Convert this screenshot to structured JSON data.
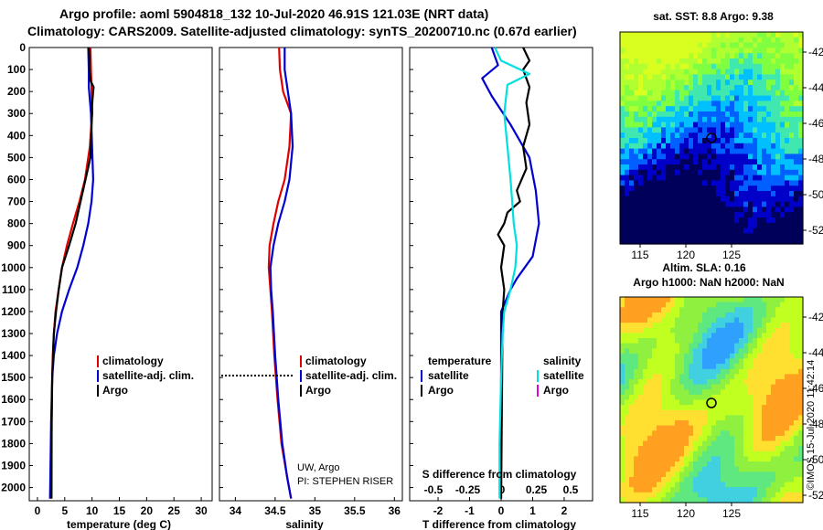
{
  "header": {
    "line1": "Argo profile: aoml 5904818_132 10-Jul-2020 46.91S 121.03E (NRT data)",
    "line2": "Climatology: CARS2009. Satellite-adjusted climatology: synTS_20200710.nc (0.67d earlier)"
  },
  "chart_data": [
    {
      "type": "line",
      "id": "temperature",
      "xlabel": "temperature (deg C)",
      "ylabel": "",
      "xlim": [
        -1.5,
        32
      ],
      "xticks": [
        0,
        5,
        10,
        15,
        20,
        25,
        30
      ],
      "ylim": [
        2060,
        0
      ],
      "yticks": [
        0,
        100,
        200,
        300,
        400,
        500,
        600,
        700,
        800,
        900,
        1000,
        1100,
        1200,
        1300,
        1400,
        1500,
        1600,
        1700,
        1800,
        1900,
        2000
      ],
      "legend": [
        "climatology",
        "satellite-adj. clim.",
        "Argo"
      ],
      "series": [
        {
          "name": "climatology",
          "color": "#e00000",
          "x": [
            9.7,
            9.8,
            9.9,
            10.0,
            9.6,
            8.7,
            7.7,
            6.5,
            5.4,
            4.5,
            3.9,
            3.3,
            3.0,
            2.8,
            2.7,
            2.6,
            2.6
          ],
          "y": [
            0,
            100,
            180,
            300,
            450,
            600,
            700,
            800,
            900,
            1000,
            1100,
            1200,
            1300,
            1400,
            1500,
            1700,
            2050
          ]
        },
        {
          "name": "satellite-adj. clim.",
          "color": "#0000d0",
          "x": [
            9.3,
            9.4,
            9.4,
            9.8,
            10.0,
            10.2,
            9.9,
            9.3,
            8.4,
            7.3,
            5.8,
            4.5,
            3.6,
            3.0,
            2.7,
            2.5,
            2.3
          ],
          "y": [
            0,
            100,
            180,
            300,
            450,
            600,
            700,
            800,
            900,
            1000,
            1100,
            1200,
            1300,
            1400,
            1500,
            1700,
            2050
          ]
        },
        {
          "name": "Argo",
          "color": "#000000",
          "x": [
            9.4,
            9.5,
            9.5,
            9.7,
            10.3,
            10.2,
            10.0,
            10.0,
            9.8,
            9.7,
            8.8,
            7.9,
            7.0,
            5.8,
            4.5,
            3.9,
            3.4,
            3.0,
            2.7,
            2.6,
            2.5
          ],
          "y": [
            0,
            50,
            100,
            150,
            180,
            200,
            260,
            300,
            420,
            500,
            600,
            700,
            800,
            900,
            1000,
            1100,
            1200,
            1300,
            1500,
            1700,
            2050
          ]
        }
      ]
    },
    {
      "type": "line",
      "id": "salinity",
      "xlabel": "salinity",
      "ylabel": "",
      "xlim": [
        33.8,
        36.1
      ],
      "xticks": [
        34,
        34.5,
        35,
        35.5,
        36
      ],
      "ylim": [
        2060,
        0
      ],
      "yticks": [
        0,
        100,
        200,
        300,
        400,
        500,
        600,
        700,
        800,
        900,
        1000,
        1100,
        1200,
        1300,
        1400,
        1500,
        1600,
        1700,
        1800,
        1900,
        2000
      ],
      "legend": [
        "climatology",
        "satellite-adj. clim.",
        "Argo"
      ],
      "notes": [
        "UW, Argo",
        "PI: STEPHEN RISER"
      ],
      "series": [
        {
          "name": "climatology",
          "color": "#e00000",
          "x": [
            34.55,
            34.56,
            34.6,
            34.7,
            34.68,
            34.62,
            34.54,
            34.48,
            34.43,
            34.42,
            34.44,
            34.46,
            34.49,
            34.53,
            34.58,
            34.65,
            34.7
          ],
          "y": [
            0,
            100,
            200,
            300,
            450,
            600,
            700,
            800,
            900,
            1000,
            1100,
            1200,
            1400,
            1600,
            1800,
            1950,
            2050
          ]
        },
        {
          "name": "satellite-adj. clim.",
          "color": "#0000d0",
          "x": [
            34.62,
            34.62,
            34.66,
            34.7,
            34.72,
            34.68,
            34.62,
            34.54,
            34.48,
            34.44,
            34.45,
            34.47,
            34.5,
            34.54,
            34.59,
            34.65,
            34.7
          ],
          "y": [
            0,
            100,
            200,
            300,
            450,
            600,
            700,
            800,
            900,
            1000,
            1100,
            1200,
            1400,
            1600,
            1800,
            1950,
            2050
          ]
        }
      ]
    },
    {
      "type": "line",
      "id": "difference",
      "xlabel": "T difference from climatology",
      "ylabel": "",
      "xlim": [
        -2.9,
        2.9
      ],
      "xticks": [
        -2,
        -1,
        0,
        1,
        2
      ],
      "secondary_xlabel": "S difference from climatology",
      "secondary_xticks": [
        "-0.5",
        "-0.25",
        "0",
        "0.25",
        "0.5"
      ],
      "ylim": [
        2060,
        0
      ],
      "yticks": [
        0,
        100,
        200,
        300,
        400,
        500,
        600,
        700,
        800,
        900,
        1000,
        1100,
        1200,
        1300,
        1400,
        1500,
        1600,
        1700,
        1800,
        1900,
        2000
      ],
      "legend_temperature_title": "temperature",
      "legend_salinity_title": "salinity",
      "legend_temperature": [
        "satellite",
        "Argo"
      ],
      "legend_salinity": [
        "satellite",
        "Argo"
      ],
      "series": [
        {
          "name": "satellite",
          "color": "#0000d0",
          "x": [
            -0.3,
            -0.1,
            -0.6,
            -0.3,
            0.3,
            0.9,
            1.1,
            1.2,
            1.0,
            0.5,
            0.3,
            0.0,
            0.0
          ],
          "y": [
            0,
            80,
            140,
            220,
            350,
            500,
            650,
            800,
            950,
            1050,
            1100,
            1200,
            2050
          ]
        },
        {
          "name": "Argo",
          "color": "#000000",
          "x": [
            0.7,
            0.9,
            0.7,
            0.9,
            0.8,
            0.9,
            0.7,
            0.8,
            0.5,
            0.6,
            0.2,
            0.1,
            -0.1,
            0.1,
            0.0,
            0.1,
            0.05,
            0.0
          ],
          "y": [
            0,
            60,
            100,
            180,
            250,
            350,
            450,
            550,
            650,
            700,
            750,
            800,
            850,
            900,
            1000,
            1100,
            1200,
            2050
          ]
        },
        {
          "name": "satellite",
          "color": "#00e0e0",
          "x": [
            -0.2,
            0.0,
            0.9,
            0.2,
            0.1,
            0.2,
            0.3,
            0.35,
            0.4,
            0.5,
            0.45,
            0.3,
            0.1,
            0.05,
            0.0,
            -0.05,
            -0.05
          ],
          "y": [
            0,
            60,
            120,
            170,
            300,
            450,
            600,
            700,
            800,
            900,
            1000,
            1100,
            1200,
            1300,
            1500,
            1800,
            2050
          ]
        }
      ]
    }
  ],
  "maps": {
    "sst": {
      "title": "sat. SST: 8.8 Argo: 9.38",
      "lon_ticks": [
        "115",
        "120",
        "125"
      ],
      "lat_ticks": [
        "-42",
        "-44",
        "-46",
        "-48",
        "-50",
        "-52"
      ],
      "colors": [
        "#00005a",
        "#0000c8",
        "#0060ff",
        "#00c0ff",
        "#40e8b0",
        "#80ff40",
        "#b0ff30",
        "#d8ff20"
      ]
    },
    "sla": {
      "title_line1": "Altim. SLA: 0.16",
      "title_line2": "Argo h1000: NaN h2000: NaN",
      "lon_ticks": [
        "115",
        "120",
        "125"
      ],
      "lat_ticks": [
        "-42",
        "-44",
        "-46",
        "-48",
        "-50",
        "-52"
      ],
      "colors": [
        "#1050ff",
        "#30a0ff",
        "#40d0e0",
        "#60e880",
        "#90f040",
        "#c0ff20",
        "#ffe030",
        "#ffa020"
      ]
    },
    "credit": "©IMOS 15-Jul-2020 11:42:14"
  }
}
